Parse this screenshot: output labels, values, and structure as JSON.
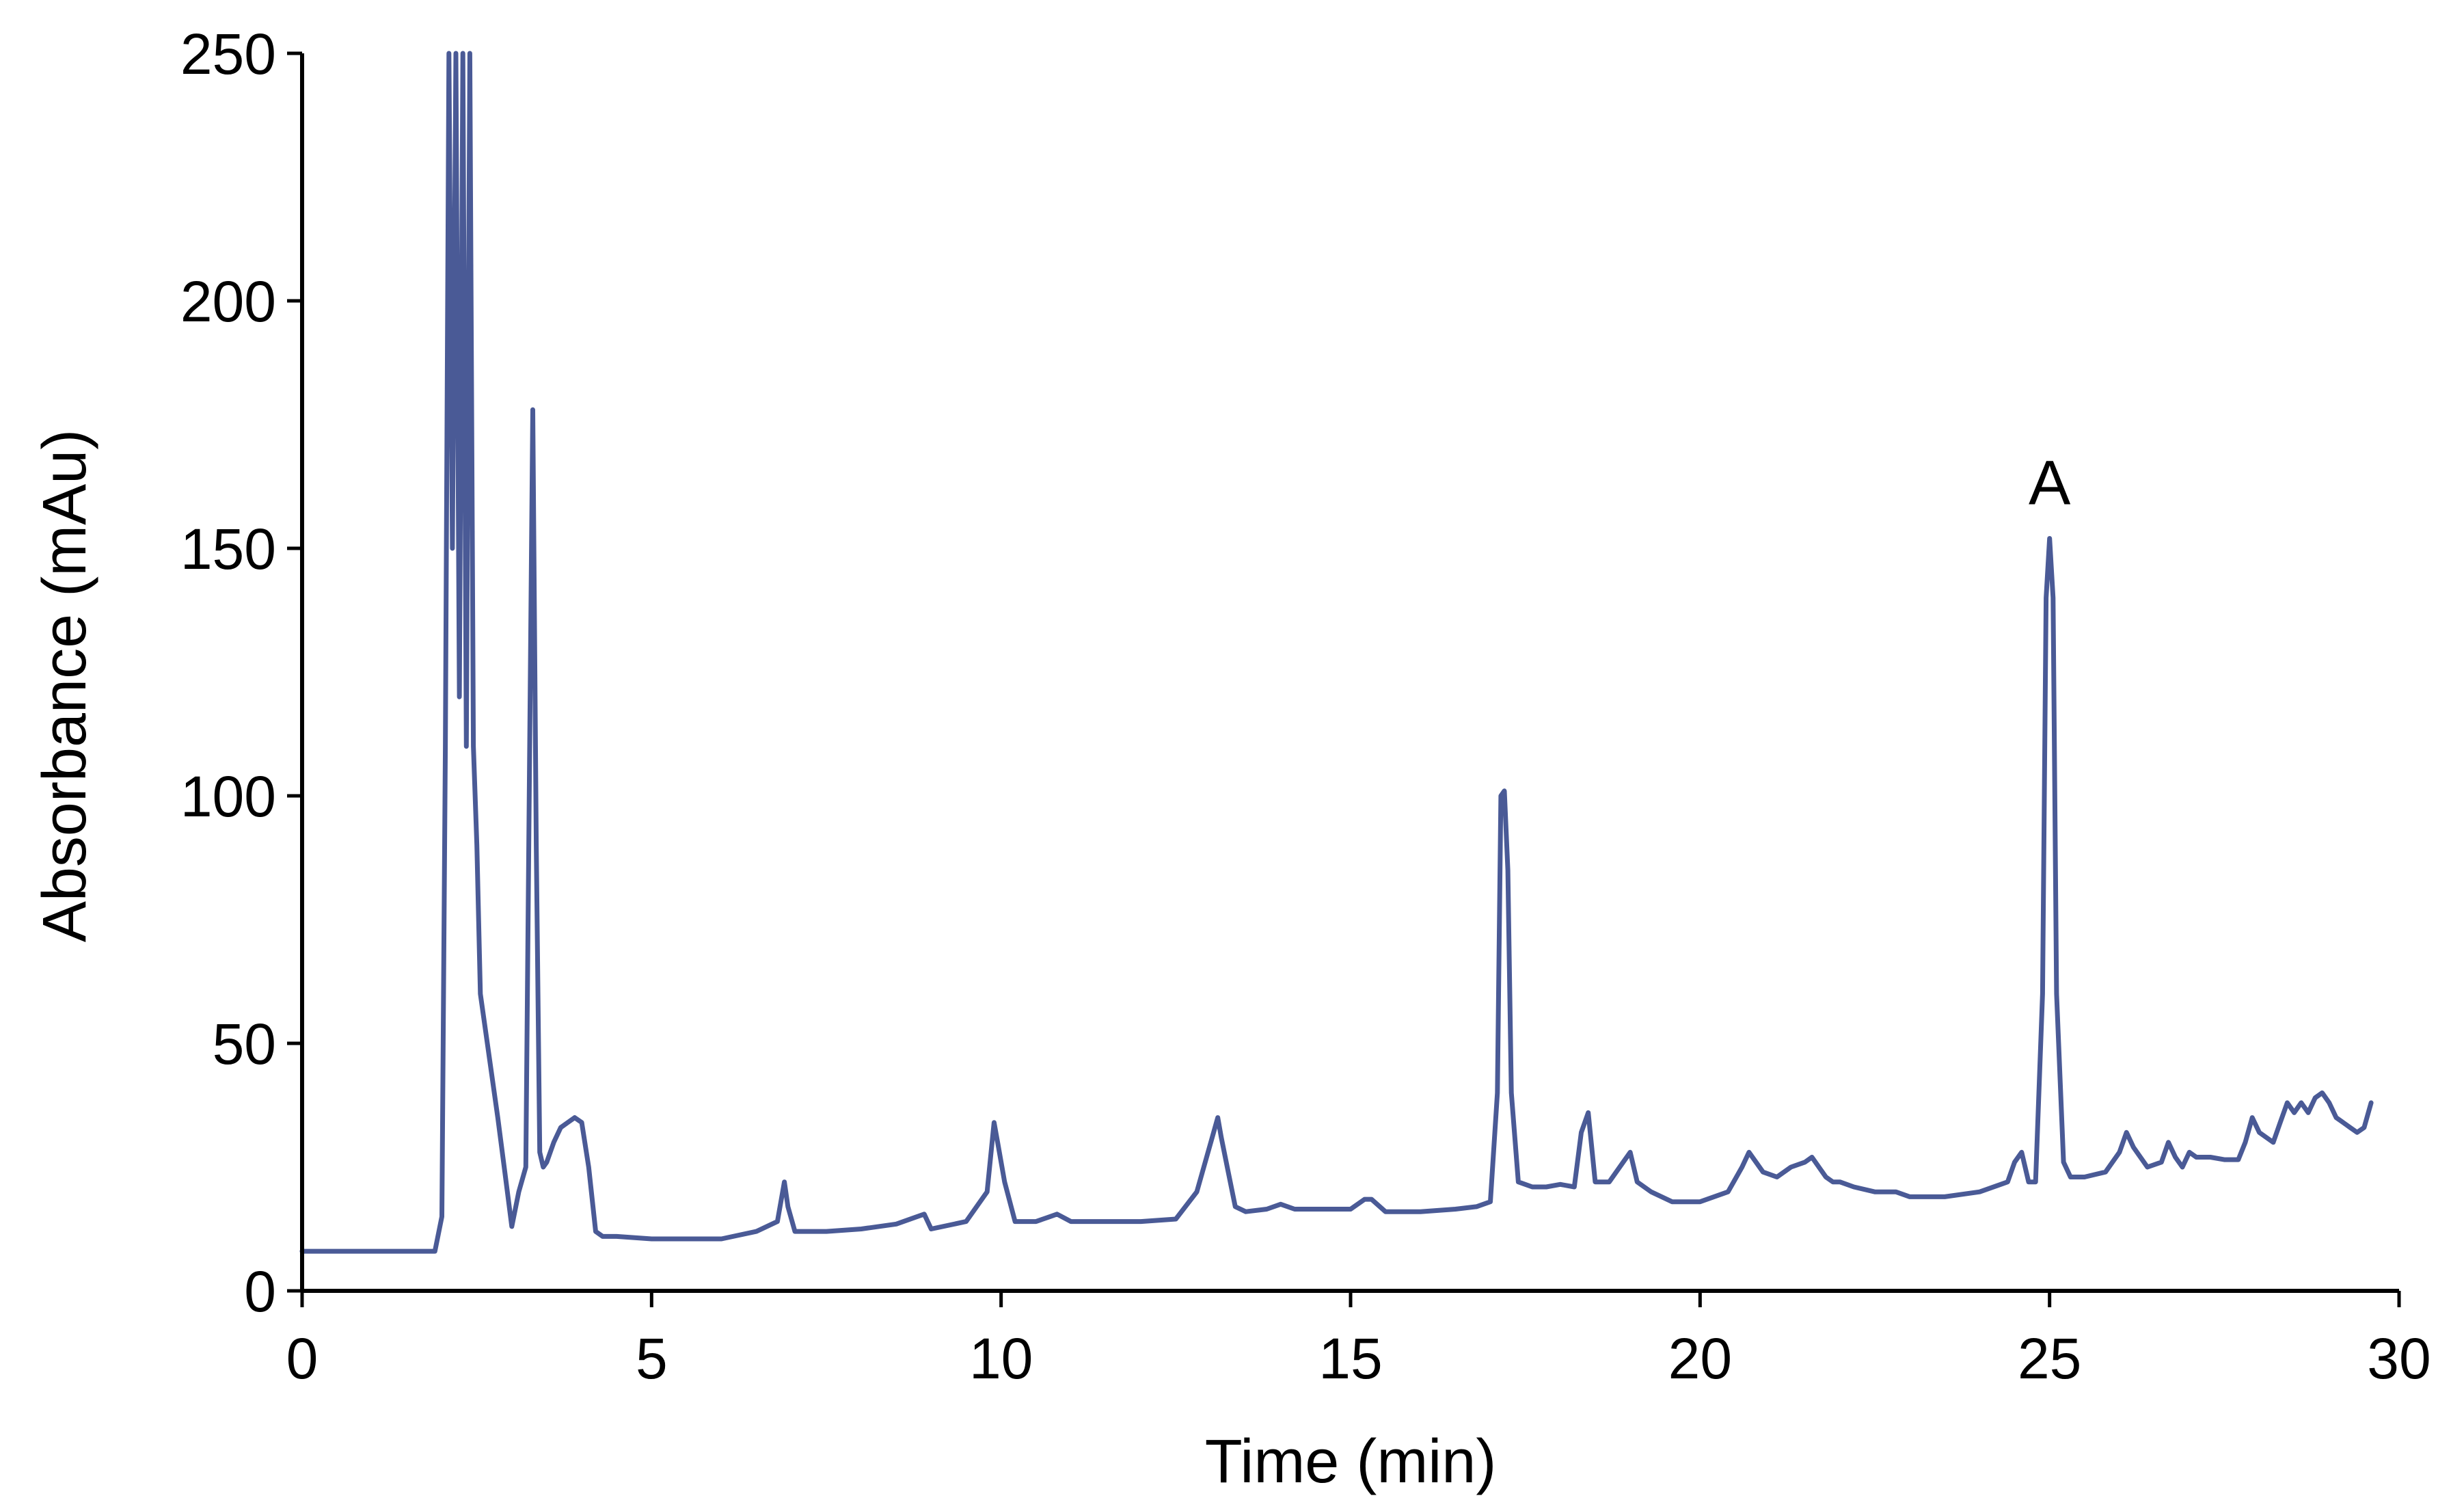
{
  "chart_data": {
    "type": "line",
    "title": "",
    "xlabel": "Time (min)",
    "ylabel": "Absorbance (mAu)",
    "xlim": [
      0,
      30
    ],
    "ylim": [
      0,
      250
    ],
    "x_ticks": [
      0,
      5,
      10,
      15,
      20,
      25,
      30
    ],
    "y_ticks": [
      0,
      50,
      100,
      150,
      200,
      250
    ],
    "grid": false,
    "legend": "none",
    "line_color": "#4a5a96",
    "annotations": [
      {
        "text": "A",
        "x": 25.0,
        "y": 160
      }
    ],
    "series": [
      {
        "x": [
          0.0,
          1.0,
          1.9,
          2.0,
          2.05,
          2.1,
          2.15,
          2.2,
          2.25,
          2.3,
          2.35,
          2.4,
          2.45,
          2.5,
          2.55,
          2.6,
          2.7,
          2.8,
          2.9,
          3.0,
          3.1,
          3.2,
          3.3,
          3.35,
          3.4,
          3.45,
          3.5,
          3.6,
          3.7,
          3.8,
          3.9,
          4.0,
          4.1,
          4.2,
          4.3,
          4.5,
          5.0,
          6.0,
          6.5,
          6.8,
          6.9,
          6.95,
          7.05,
          7.2,
          7.5,
          8.0,
          8.5,
          8.8,
          8.9,
          9.0,
          9.5,
          9.8,
          9.9,
          9.95,
          10.05,
          10.2,
          10.5,
          10.7,
          10.8,
          11.0,
          12.0,
          12.5,
          12.8,
          13.0,
          13.1,
          13.15,
          13.25,
          13.35,
          13.5,
          13.8,
          14.0,
          14.2,
          15.0,
          15.2,
          15.3,
          15.5,
          16.0,
          16.5,
          16.8,
          17.0,
          17.1,
          17.15,
          17.2,
          17.25,
          17.3,
          17.4,
          17.6,
          17.8,
          18.0,
          18.2,
          18.3,
          18.4,
          18.5,
          18.7,
          18.9,
          19.0,
          19.1,
          19.3,
          19.6,
          20.0,
          20.4,
          20.6,
          20.7,
          20.9,
          21.1,
          21.3,
          21.5,
          21.6,
          21.8,
          21.9,
          22.0,
          22.2,
          22.5,
          22.8,
          23.0,
          23.5,
          24.0,
          24.4,
          24.5,
          24.6,
          24.7,
          24.8,
          24.9,
          24.95,
          25.0,
          25.05,
          25.1,
          25.2,
          25.3,
          25.5,
          25.8,
          26.0,
          26.1,
          26.2,
          26.4,
          26.6,
          26.7,
          26.8,
          26.9,
          27.0,
          27.1,
          27.3,
          27.5,
          27.7,
          27.8,
          27.9,
          28.0,
          28.2,
          28.3,
          28.4,
          28.5,
          28.6,
          28.7,
          28.8,
          28.9,
          29.0,
          29.1,
          29.2,
          29.3,
          29.4,
          29.5,
          29.6
        ],
        "y": [
          8,
          8,
          8,
          15,
          110,
          250,
          150,
          250,
          120,
          250,
          110,
          250,
          110,
          90,
          60,
          55,
          45,
          35,
          24,
          13,
          20,
          25,
          178,
          90,
          28,
          25,
          26,
          30,
          33,
          34,
          35,
          34,
          25,
          12,
          11,
          11,
          10.5,
          10.5,
          12,
          14,
          22,
          17,
          12,
          12,
          12,
          12.5,
          13.5,
          15,
          15.5,
          12.5,
          14,
          20,
          34,
          30,
          22,
          14,
          14,
          15,
          15.5,
          14,
          14,
          14.5,
          20,
          30,
          35,
          31,
          24,
          17,
          16,
          16.5,
          17.5,
          16.5,
          16.5,
          18.5,
          18.5,
          16,
          16,
          16.5,
          17,
          18,
          40,
          100,
          101,
          85,
          40,
          22,
          21,
          21,
          21.5,
          21,
          32,
          36,
          22,
          22,
          26,
          28,
          22,
          20,
          18,
          18,
          20,
          25,
          28,
          24,
          23,
          25,
          26,
          27,
          23,
          22,
          22,
          21,
          20,
          20,
          19,
          19,
          20,
          22,
          26,
          28,
          22,
          22,
          60,
          140,
          152,
          140,
          60,
          26,
          23,
          23,
          24,
          28,
          32,
          29,
          25,
          26,
          30,
          27,
          25,
          28,
          27,
          27,
          26.5,
          26.5,
          30,
          35,
          32,
          30,
          34,
          38,
          36,
          38,
          36,
          39,
          40,
          38,
          35,
          34,
          33,
          32,
          33,
          38
        ]
      }
    ]
  }
}
